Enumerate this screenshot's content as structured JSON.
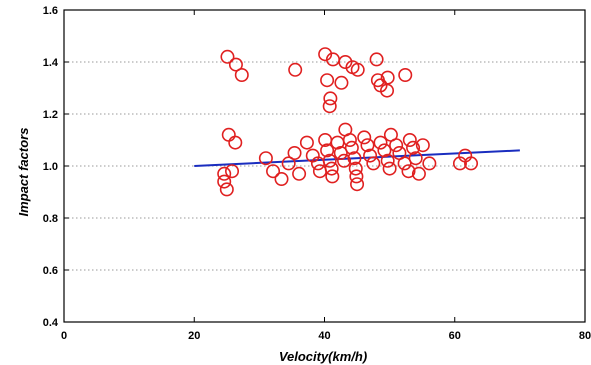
{
  "chart_data": {
    "type": "scatter",
    "title": "",
    "xlabel": "Velocity(km/h)",
    "ylabel": "Impact factors",
    "xlim": [
      0,
      80
    ],
    "ylim": [
      0.4,
      1.6
    ],
    "x_ticks": [
      0,
      20,
      40,
      60,
      80
    ],
    "y_ticks": [
      0.4,
      0.6,
      0.8,
      1.0,
      1.2,
      1.4,
      1.6
    ],
    "x_tick_labels": [
      "0",
      "20",
      "40",
      "60",
      "80"
    ],
    "y_tick_labels": [
      "0.4",
      "0.6",
      "0.8",
      "1.0",
      "1.2",
      "1.4",
      "1.6"
    ],
    "grid": "horizontal-dotted",
    "marker_color": "#e02020",
    "fit_color": "#1a2dbf",
    "series": [
      {
        "type": "scatter",
        "points": [
          [
            25.1,
            1.42
          ],
          [
            26.4,
            1.39
          ],
          [
            27.3,
            1.35
          ],
          [
            35.5,
            1.37
          ],
          [
            40.1,
            1.43
          ],
          [
            41.3,
            1.41
          ],
          [
            43.2,
            1.4
          ],
          [
            44.3,
            1.38
          ],
          [
            45.1,
            1.37
          ],
          [
            48.0,
            1.41
          ],
          [
            40.4,
            1.33
          ],
          [
            42.6,
            1.32
          ],
          [
            48.2,
            1.33
          ],
          [
            49.7,
            1.34
          ],
          [
            52.4,
            1.35
          ],
          [
            48.6,
            1.31
          ],
          [
            49.6,
            1.29
          ],
          [
            40.9,
            1.26
          ],
          [
            40.8,
            1.23
          ],
          [
            25.3,
            1.12
          ],
          [
            26.3,
            1.09
          ],
          [
            24.6,
            0.97
          ],
          [
            25.8,
            0.98
          ],
          [
            24.6,
            0.94
          ],
          [
            25.0,
            0.91
          ],
          [
            31.0,
            1.03
          ],
          [
            32.1,
            0.98
          ],
          [
            33.4,
            0.95
          ],
          [
            34.5,
            1.01
          ],
          [
            35.4,
            1.05
          ],
          [
            36.1,
            0.97
          ],
          [
            37.3,
            1.09
          ],
          [
            38.2,
            1.04
          ],
          [
            39.0,
            1.01
          ],
          [
            39.3,
            0.98
          ],
          [
            40.1,
            1.1
          ],
          [
            40.4,
            1.06
          ],
          [
            40.8,
            1.02
          ],
          [
            41.1,
            0.99
          ],
          [
            41.2,
            0.96
          ],
          [
            42.0,
            1.09
          ],
          [
            42.5,
            1.05
          ],
          [
            43.0,
            1.02
          ],
          [
            43.2,
            1.14
          ],
          [
            43.9,
            1.1
          ],
          [
            44.2,
            1.07
          ],
          [
            44.6,
            1.03
          ],
          [
            44.8,
            0.99
          ],
          [
            44.9,
            0.96
          ],
          [
            45.0,
            0.93
          ],
          [
            46.1,
            1.11
          ],
          [
            46.6,
            1.08
          ],
          [
            47.0,
            1.04
          ],
          [
            47.5,
            1.01
          ],
          [
            48.6,
            1.09
          ],
          [
            49.2,
            1.06
          ],
          [
            49.7,
            1.02
          ],
          [
            50.0,
            0.99
          ],
          [
            50.2,
            1.12
          ],
          [
            51.0,
            1.08
          ],
          [
            51.5,
            1.05
          ],
          [
            52.3,
            1.01
          ],
          [
            52.9,
            0.98
          ],
          [
            53.1,
            1.1
          ],
          [
            53.6,
            1.07
          ],
          [
            54.0,
            1.03
          ],
          [
            54.5,
            0.97
          ],
          [
            55.1,
            1.08
          ],
          [
            56.1,
            1.01
          ],
          [
            60.8,
            1.01
          ],
          [
            61.6,
            1.04
          ],
          [
            62.5,
            1.01
          ]
        ]
      },
      {
        "type": "line",
        "points": [
          [
            20,
            1.0
          ],
          [
            70,
            1.06
          ]
        ]
      }
    ]
  }
}
